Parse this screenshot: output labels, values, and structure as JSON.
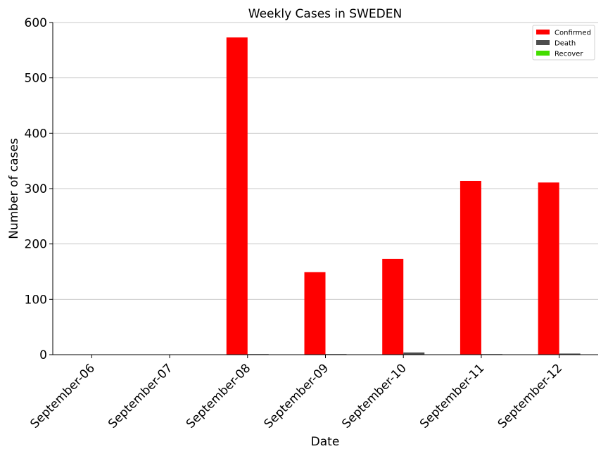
{
  "chart_data": {
    "type": "bar",
    "title": "Weekly Cases in SWEDEN",
    "xlabel": "Date",
    "ylabel": "Number of cases",
    "categories": [
      "September-06",
      "September-07",
      "September-08",
      "September-09",
      "September-10",
      "September-11",
      "September-12"
    ],
    "series": [
      {
        "name": "Confirmed",
        "color": "#ff0000",
        "values": [
          0,
          0,
          573,
          149,
          173,
          314,
          311
        ]
      },
      {
        "name": "Death",
        "color": "#4d4d4d",
        "values": [
          0,
          0,
          1,
          1,
          4,
          1,
          2
        ]
      },
      {
        "name": "Recover",
        "color": "#44dd00",
        "values": [
          0,
          0,
          0,
          0,
          0,
          0,
          0
        ]
      }
    ],
    "ylim": [
      0,
      600
    ],
    "yticks": [
      0,
      100,
      200,
      300,
      400,
      500,
      600
    ],
    "grid": "horizontal",
    "legend_position": "top-right"
  }
}
